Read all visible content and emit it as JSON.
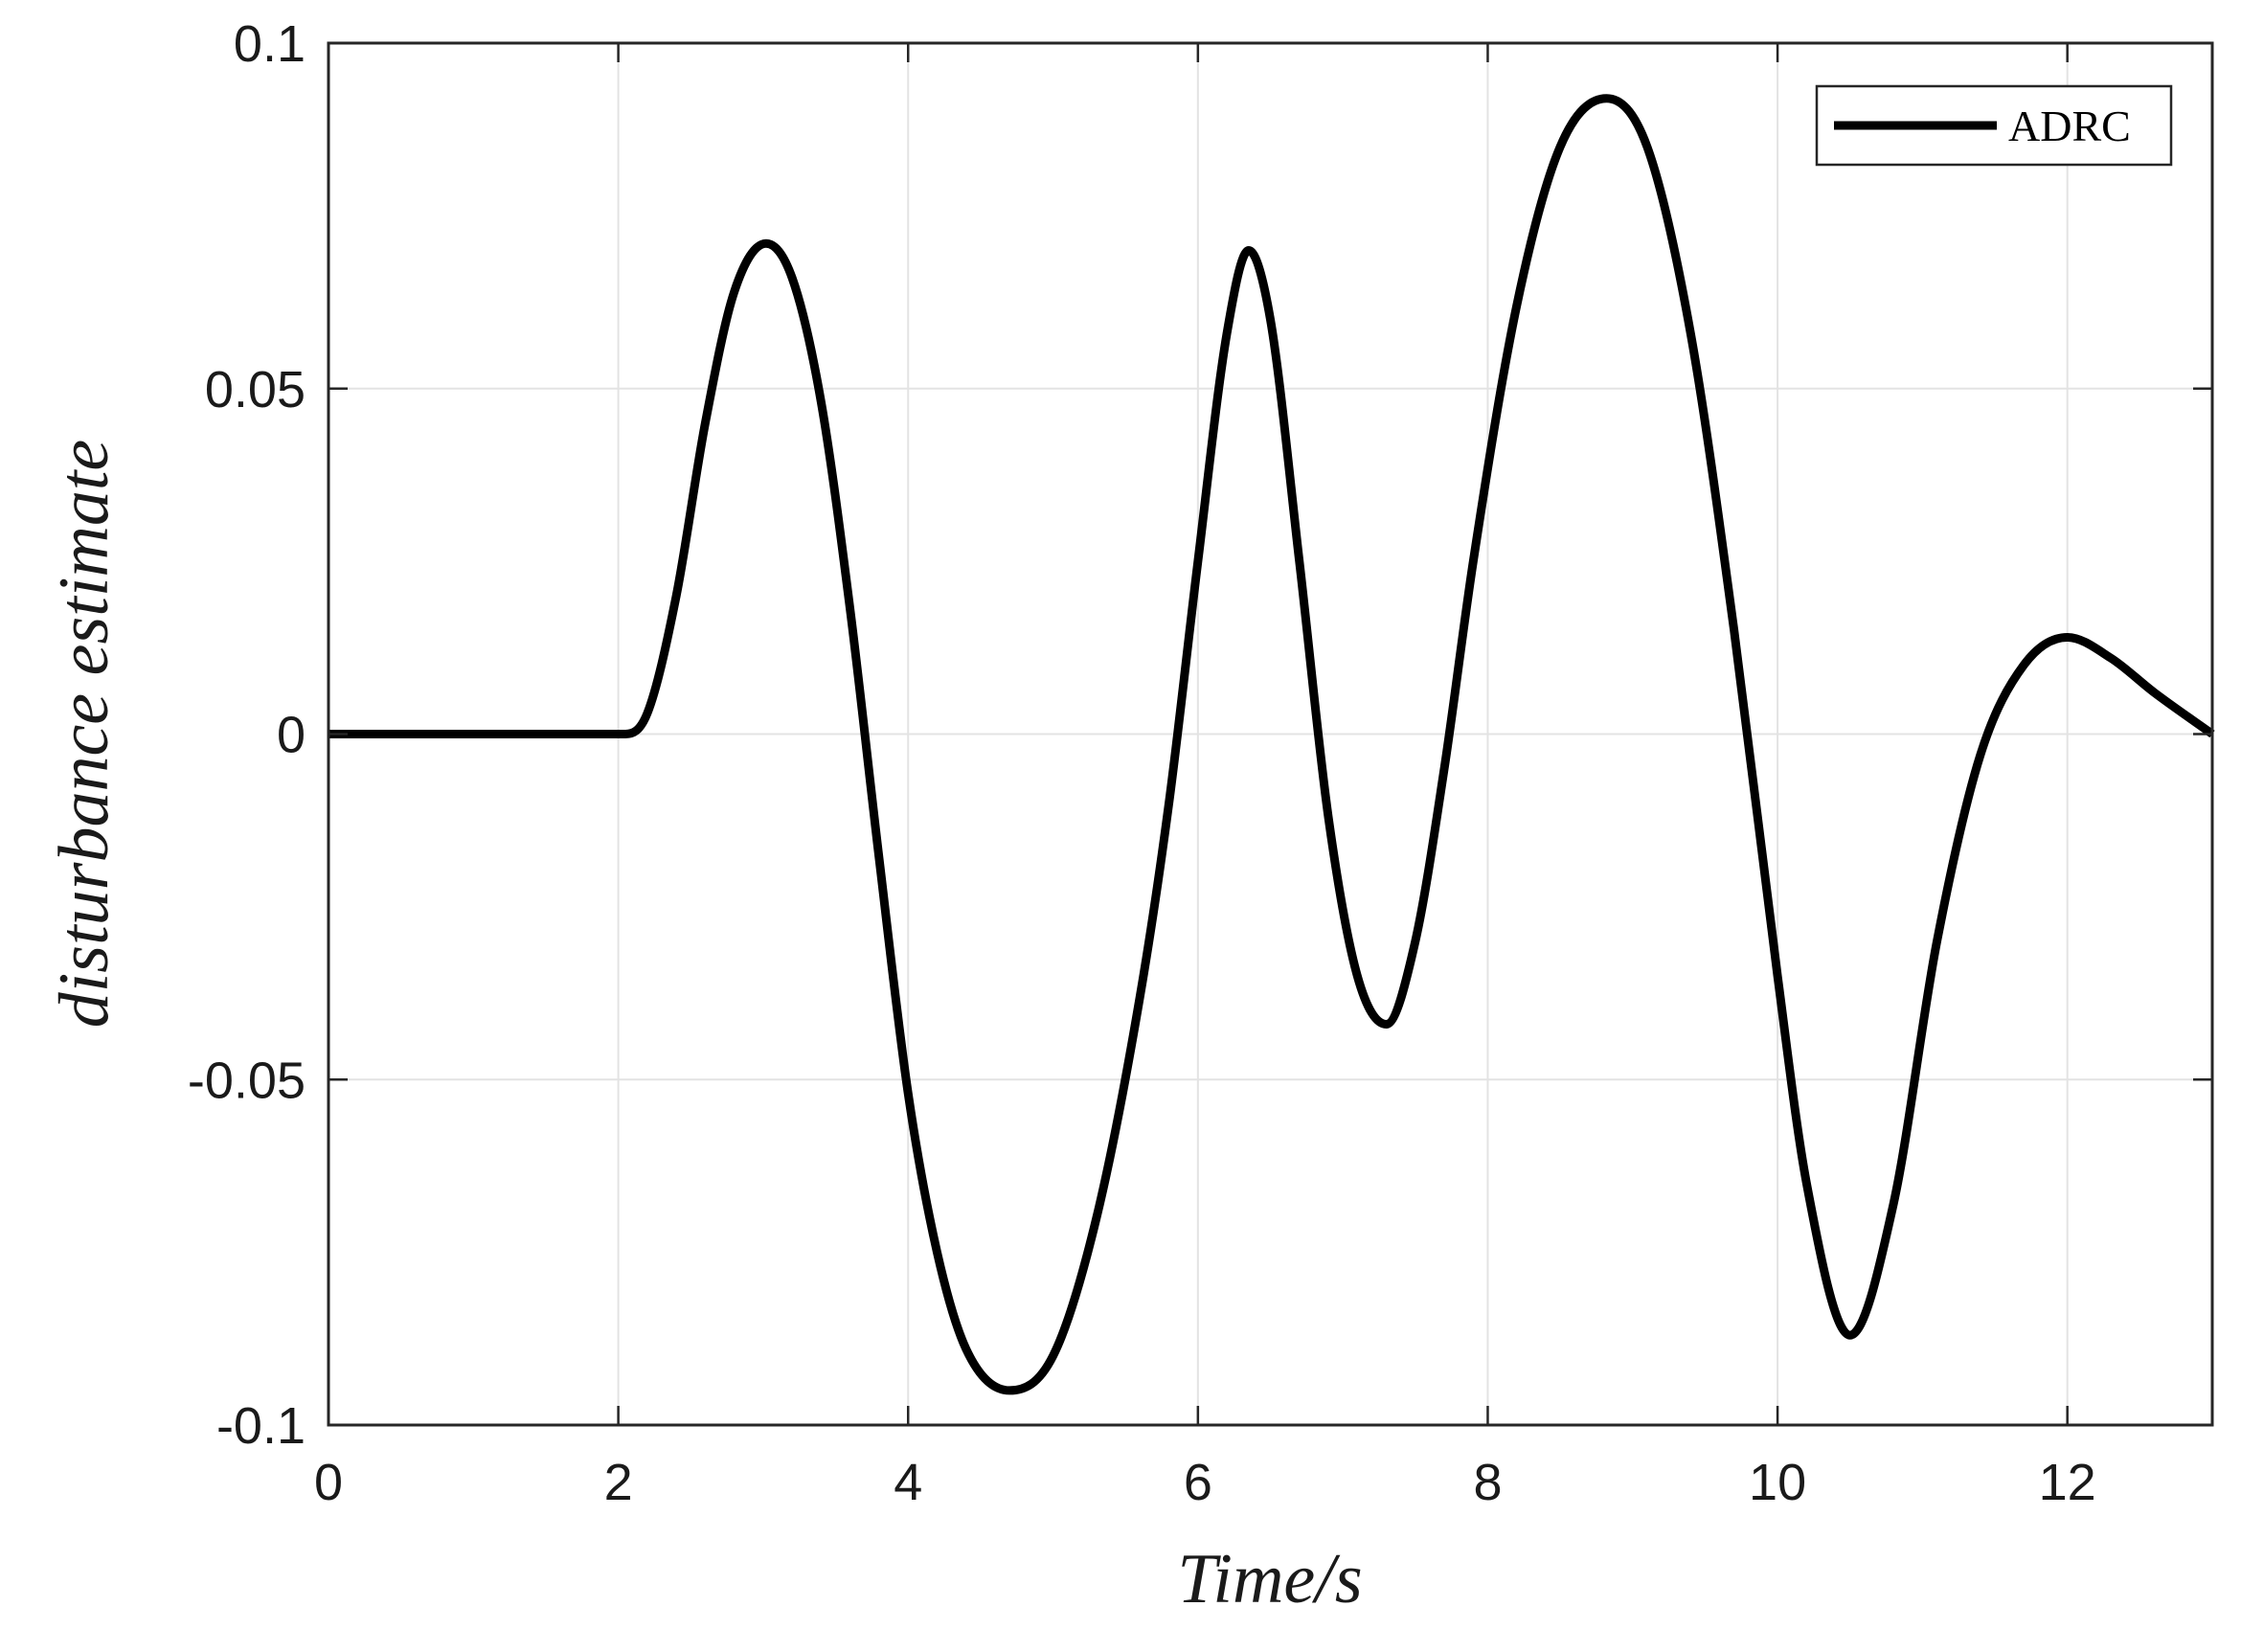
{
  "chart_data": {
    "type": "line",
    "title": "",
    "xlabel": "Time/s",
    "ylabel": "disturbance estimate",
    "xlim": [
      0,
      13
    ],
    "ylim": [
      -0.1,
      0.1
    ],
    "xticks": [
      0,
      2,
      4,
      6,
      8,
      10,
      12
    ],
    "xtick_labels": [
      "0",
      "2",
      "4",
      "6",
      "8",
      "10",
      "12"
    ],
    "yticks": [
      -0.1,
      -0.05,
      0,
      0.05,
      0.1
    ],
    "ytick_labels": [
      "-0.1",
      "-0.05",
      "0",
      "0.05",
      "0.1"
    ],
    "grid": true,
    "legend_position": "top-right",
    "series": [
      {
        "name": "ADRC",
        "color": "#000000",
        "x": [
          0,
          1,
          2.05,
          2.2,
          2.4,
          2.6,
          2.8,
          3.02,
          3.2,
          3.4,
          3.6,
          3.8,
          4.0,
          4.2,
          4.4,
          4.7,
          5.0,
          5.3,
          5.6,
          5.8,
          6.0,
          6.2,
          6.35,
          6.5,
          6.7,
          6.9,
          7.1,
          7.3,
          7.5,
          7.7,
          7.9,
          8.2,
          8.5,
          8.82,
          9.1,
          9.4,
          9.7,
          10.0,
          10.2,
          10.5,
          10.8,
          11.1,
          11.4,
          11.7,
          12.0,
          12.3,
          12.6,
          13.0
        ],
        "y": [
          0,
          0,
          0,
          0.003,
          0.02,
          0.045,
          0.064,
          0.071,
          0.066,
          0.048,
          0.018,
          -0.018,
          -0.052,
          -0.075,
          -0.089,
          -0.095,
          -0.09,
          -0.07,
          -0.038,
          -0.01,
          0.025,
          0.058,
          0.07,
          0.06,
          0.025,
          -0.012,
          -0.035,
          -0.042,
          -0.03,
          -0.005,
          0.025,
          0.062,
          0.085,
          0.092,
          0.085,
          0.058,
          0.015,
          -0.035,
          -0.065,
          -0.087,
          -0.068,
          -0.03,
          -0.003,
          0.01,
          0.014,
          0.011,
          0.006,
          0
        ]
      }
    ]
  }
}
